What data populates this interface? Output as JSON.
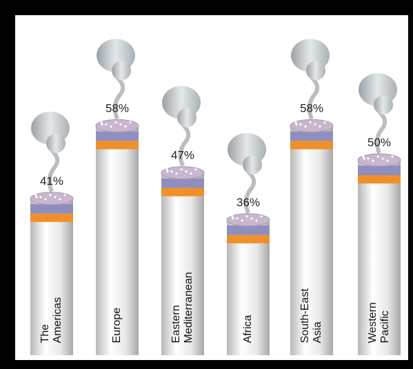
{
  "chart_data": {
    "type": "bar",
    "categories": [
      "The Americas",
      "Europe",
      "Eastern Mediterranean",
      "Africa",
      "South-East Asia",
      "Western Pacific"
    ],
    "values": [
      41,
      58,
      47,
      36,
      58,
      50
    ],
    "value_labels": [
      "41%",
      "58%",
      "47%",
      "36%",
      "58%",
      "50%"
    ]
  }
}
